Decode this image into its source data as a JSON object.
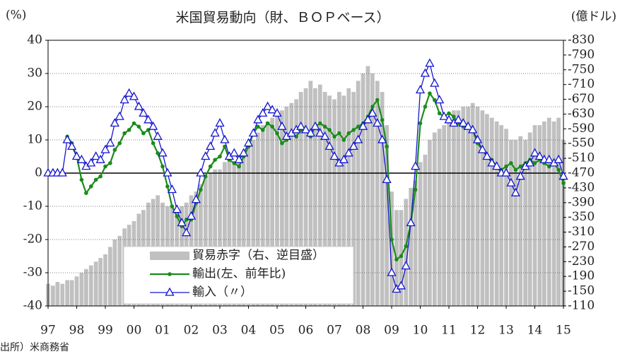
{
  "chart_data": {
    "type": "combo",
    "title": "米国貿易動向（財、ＢＯＰベース）",
    "y_label": "(%)",
    "y2_label": "(億ドル)",
    "source": "出所）米商務省",
    "xlim": [
      1997,
      2015
    ],
    "xticks": [
      {
        "value": 1997,
        "label": "97"
      },
      {
        "value": 1998,
        "label": "98"
      },
      {
        "value": 1999,
        "label": "99"
      },
      {
        "value": 2000,
        "label": "00"
      },
      {
        "value": 2001,
        "label": "01"
      },
      {
        "value": 2002,
        "label": "02"
      },
      {
        "value": 2003,
        "label": "03"
      },
      {
        "value": 2004,
        "label": "04"
      },
      {
        "value": 2005,
        "label": "05"
      },
      {
        "value": 2006,
        "label": "06"
      },
      {
        "value": 2007,
        "label": "07"
      },
      {
        "value": 2008,
        "label": "08"
      },
      {
        "value": 2009,
        "label": "09"
      },
      {
        "value": 2010,
        "label": "10"
      },
      {
        "value": 2011,
        "label": "11"
      },
      {
        "value": 2012,
        "label": "12"
      },
      {
        "value": 2013,
        "label": "13"
      },
      {
        "value": 2014,
        "label": "14"
      },
      {
        "value": 2015,
        "label": "15"
      }
    ],
    "ylim": [
      -40,
      40
    ],
    "yticks": [
      -40,
      -30,
      -20,
      -10,
      0,
      10,
      20,
      30,
      40
    ],
    "y2lim": [
      -110,
      -830
    ],
    "y2ticks": [
      -830,
      -790,
      -750,
      -710,
      -670,
      -630,
      -590,
      -550,
      -510,
      -470,
      -430,
      -390,
      -350,
      -310,
      -270,
      -230,
      -190,
      -150,
      -110
    ],
    "grid": true,
    "x": [
      1997,
      1997.17,
      1997.33,
      1997.5,
      1997.67,
      1997.83,
      1998,
      1998.17,
      1998.33,
      1998.5,
      1998.67,
      1998.83,
      1999,
      1999.17,
      1999.33,
      1999.5,
      1999.67,
      1999.83,
      2000,
      2000.17,
      2000.33,
      2000.5,
      2000.67,
      2000.83,
      2001,
      2001.17,
      2001.33,
      2001.5,
      2001.67,
      2001.83,
      2002,
      2002.17,
      2002.33,
      2002.5,
      2002.67,
      2002.83,
      2003,
      2003.17,
      2003.33,
      2003.5,
      2003.67,
      2003.83,
      2004,
      2004.17,
      2004.33,
      2004.5,
      2004.67,
      2004.83,
      2005,
      2005.17,
      2005.33,
      2005.5,
      2005.67,
      2005.83,
      2006,
      2006.17,
      2006.33,
      2006.5,
      2006.67,
      2006.83,
      2007,
      2007.17,
      2007.33,
      2007.5,
      2007.67,
      2007.83,
      2008,
      2008.17,
      2008.33,
      2008.5,
      2008.67,
      2008.83,
      2009,
      2009.17,
      2009.33,
      2009.5,
      2009.67,
      2009.83,
      2010,
      2010.17,
      2010.33,
      2010.5,
      2010.67,
      2010.83,
      2011,
      2011.17,
      2011.33,
      2011.5,
      2011.67,
      2011.83,
      2012,
      2012.17,
      2012.33,
      2012.5,
      2012.67,
      2012.83,
      2013,
      2013.17,
      2013.33,
      2013.5,
      2013.67,
      2013.83,
      2014,
      2014.17,
      2014.33,
      2014.5,
      2014.67,
      2014.83,
      2015
    ],
    "series": [
      {
        "name": "貿易赤字（右、逆目盛）",
        "type": "bar",
        "axis": "y2",
        "color": "#c0c0c0",
        "values": [
          -170,
          -165,
          -175,
          -170,
          -180,
          -180,
          -190,
          -200,
          -210,
          -220,
          -230,
          -240,
          -250,
          -270,
          -290,
          -300,
          -320,
          -330,
          -340,
          -360,
          -370,
          -390,
          -400,
          -410,
          -390,
          -380,
          -380,
          -370,
          -380,
          -390,
          -410,
          -420,
          -440,
          -460,
          -470,
          -480,
          -480,
          -500,
          -510,
          -500,
          -510,
          -530,
          -540,
          -560,
          -580,
          -600,
          -610,
          -620,
          -630,
          -640,
          -650,
          -660,
          -670,
          -690,
          -700,
          -720,
          -700,
          -710,
          -690,
          -680,
          -670,
          -690,
          -680,
          -700,
          -690,
          -720,
          -740,
          -760,
          -740,
          -720,
          -690,
          -600,
          -420,
          -370,
          -370,
          -400,
          -430,
          -450,
          -500,
          -520,
          -560,
          -580,
          -590,
          -600,
          -610,
          -640,
          -640,
          -650,
          -650,
          -660,
          -650,
          -640,
          -630,
          -620,
          -610,
          -600,
          -590,
          -560,
          -560,
          -570,
          -560,
          -580,
          -600,
          -600,
          -610,
          -620,
          -610,
          -620,
          -560
        ]
      },
      {
        "name": "輸出(左、前年比)",
        "type": "line",
        "marker": "circle",
        "color": "#1a8c1a",
        "values": [
          null,
          null,
          null,
          null,
          11,
          9,
          5,
          -2,
          -6,
          -4,
          -2,
          -1,
          2,
          3,
          7,
          9,
          12,
          13,
          15,
          14,
          12,
          13,
          9,
          6,
          2,
          -4,
          -10,
          -13,
          -16,
          -14,
          -14,
          -9,
          -5,
          -1,
          2,
          4,
          5,
          8,
          4,
          3,
          2,
          5,
          8,
          12,
          14,
          13,
          15,
          14,
          12,
          9,
          10,
          12,
          11,
          13,
          13,
          11,
          14,
          15,
          14,
          13,
          11,
          12,
          10,
          12,
          13,
          14,
          15,
          17,
          20,
          22,
          16,
          8,
          -20,
          -26,
          -25,
          -22,
          -15,
          -5,
          15,
          20,
          24,
          22,
          18,
          17,
          18,
          17,
          15,
          14,
          14,
          13,
          9,
          7,
          5,
          4,
          2,
          1,
          2,
          3,
          1,
          2,
          3,
          4,
          3,
          4,
          3,
          2,
          3,
          1,
          -3
        ]
      },
      {
        "name": "輸入（〃）",
        "type": "line",
        "marker": "triangle",
        "color": "#1515d0",
        "values": [
          0,
          0,
          0,
          0,
          10,
          8,
          5,
          4,
          2,
          3,
          5,
          4,
          7,
          9,
          15,
          17,
          22,
          24,
          23,
          20,
          18,
          16,
          14,
          11,
          6,
          0,
          -5,
          -11,
          -15,
          -18,
          -13,
          -8,
          0,
          5,
          8,
          12,
          15,
          10,
          5,
          6,
          4,
          6,
          9,
          12,
          16,
          18,
          20,
          19,
          18,
          14,
          11,
          12,
          13,
          14,
          13,
          12,
          14,
          12,
          11,
          8,
          5,
          3,
          4,
          6,
          8,
          10,
          14,
          16,
          18,
          15,
          10,
          -2,
          -30,
          -35,
          -34,
          -28,
          -15,
          2,
          25,
          30,
          33,
          27,
          22,
          17,
          16,
          15,
          16,
          15,
          14,
          13,
          10,
          7,
          5,
          3,
          2,
          0,
          0,
          -3,
          -6,
          -1,
          2,
          3,
          6,
          5,
          4,
          4,
          3,
          4,
          -1
        ]
      }
    ]
  }
}
